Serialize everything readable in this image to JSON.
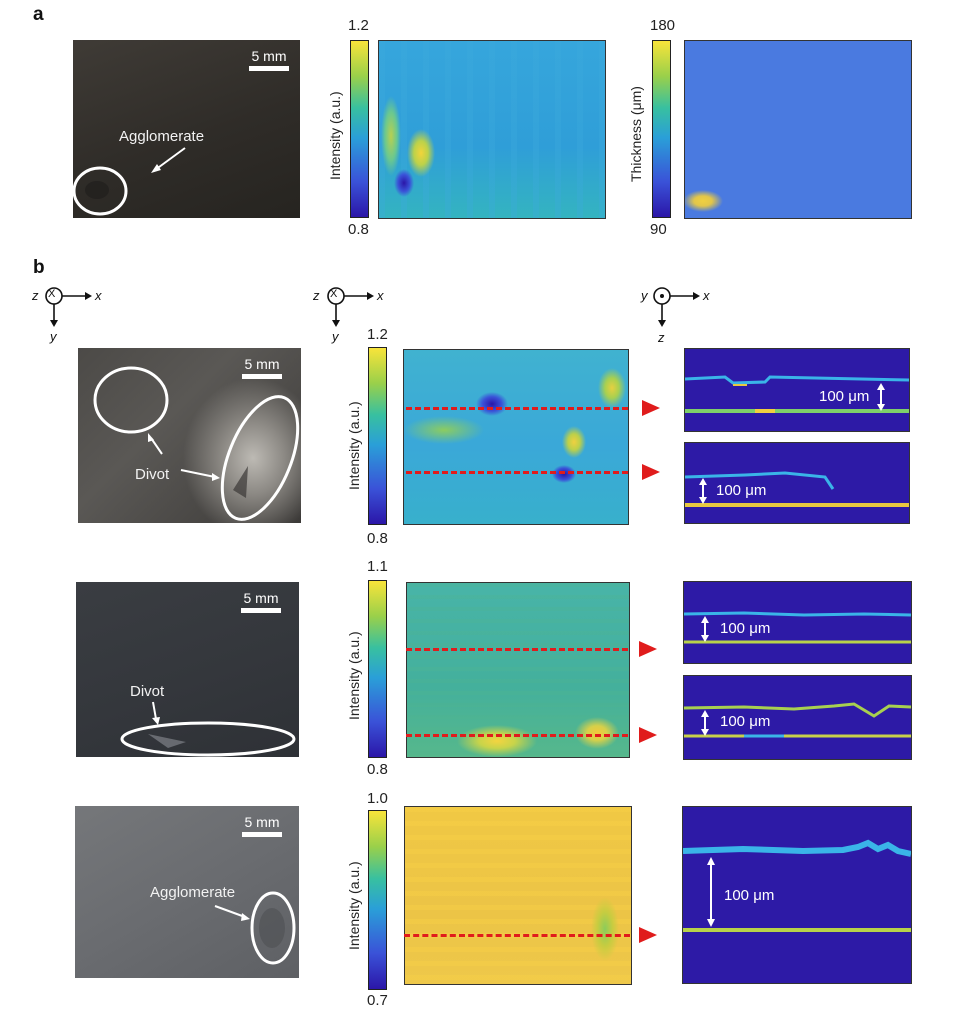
{
  "panel_a": {
    "letter": "a",
    "photo": {
      "scale_label": "5 mm",
      "annotation": "Agglomerate"
    },
    "intensity_map": {
      "cbar_label": "Intensity (a.u.)",
      "cbar_max": "1.2",
      "cbar_min": "0.8"
    },
    "thickness_map": {
      "cbar_label": "Thickness (μm)",
      "cbar_max": "180",
      "cbar_min": "90"
    }
  },
  "panel_b": {
    "letter": "b",
    "axes_left": {
      "out": "z",
      "in_symbol": "X",
      "right": "x",
      "down": "y"
    },
    "axes_mid": {
      "out": "z",
      "in_symbol": "X",
      "right": "x",
      "down": "y"
    },
    "axes_right": {
      "left": "y",
      "right": "x",
      "down": "z"
    },
    "rows": [
      {
        "photo": {
          "scale_label": "5 mm",
          "annotation": "Divot"
        },
        "cbar_label": "Intensity (a.u.)",
        "cbar_max": "1.2",
        "cbar_min": "0.8",
        "slices": [
          {
            "scale_label": "100 μm"
          },
          {
            "scale_label": "100 μm"
          }
        ]
      },
      {
        "photo": {
          "scale_label": "5 mm",
          "annotation": "Divot"
        },
        "cbar_label": "Intensity (a.u.)",
        "cbar_max": "1.1",
        "cbar_min": "0.8",
        "slices": [
          {
            "scale_label": "100 μm"
          },
          {
            "scale_label": "100 μm"
          }
        ]
      },
      {
        "photo": {
          "scale_label": "5 mm",
          "annotation": "Agglomerate"
        },
        "cbar_label": "Intensity (a.u.)",
        "cbar_max": "1.0",
        "cbar_min": "0.7",
        "slices": [
          {
            "scale_label": "100 μm"
          }
        ]
      }
    ]
  },
  "colors": {
    "dash": "#e01c1c",
    "slice_bg": "#2d1aa6"
  }
}
